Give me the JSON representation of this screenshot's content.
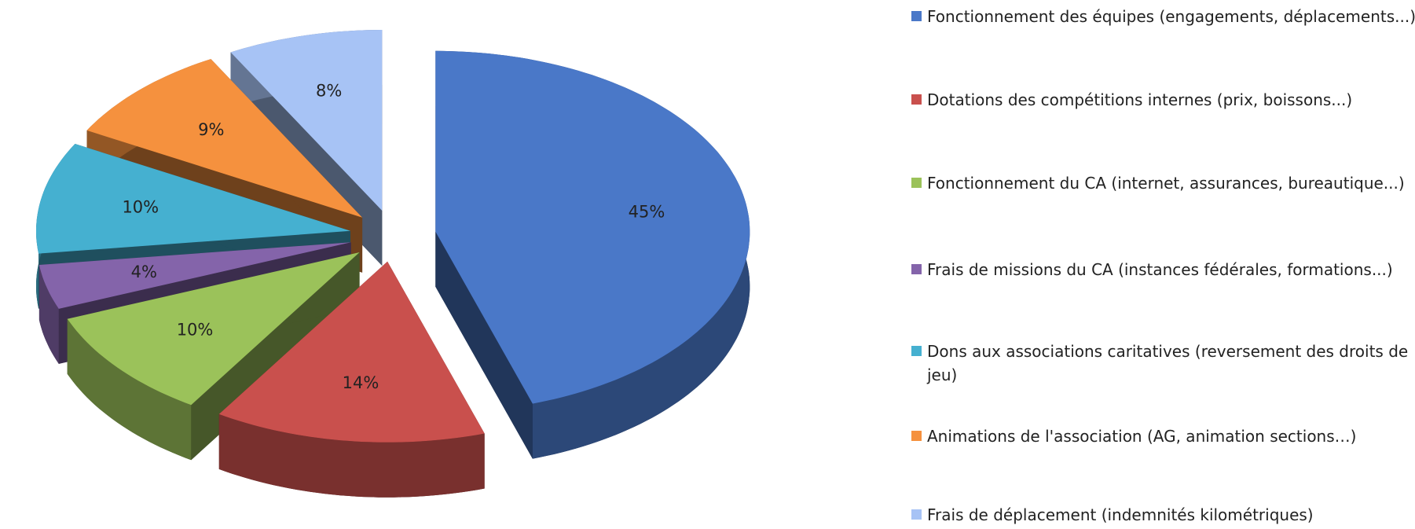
{
  "chart_data": {
    "type": "pie3d",
    "categories": [
      "Fonctionnement des équipes (engagements, déplacements...)",
      "Dotations des compétitions internes (prix, boissons...)",
      "Fonctionnement du CA (internet, assurances, bureautique...)",
      "Frais de missions du CA (instances fédérales, formations...)",
      "Dons aux associations caritatives (reversement des droits de jeu)",
      "Animations de l'association (AG, animation sections…)",
      "Frais de déplacement (indemnités kilométriques)"
    ],
    "values": [
      45,
      14,
      10,
      4,
      10,
      9,
      8
    ],
    "value_labels": [
      "45%",
      "14%",
      "10%",
      "4%",
      "10%",
      "9%",
      "8%"
    ],
    "colors": [
      "#4a78c8",
      "#c9504d",
      "#9bc25a",
      "#8464aa",
      "#45b0d0",
      "#f5913e",
      "#a7c3f5"
    ]
  }
}
